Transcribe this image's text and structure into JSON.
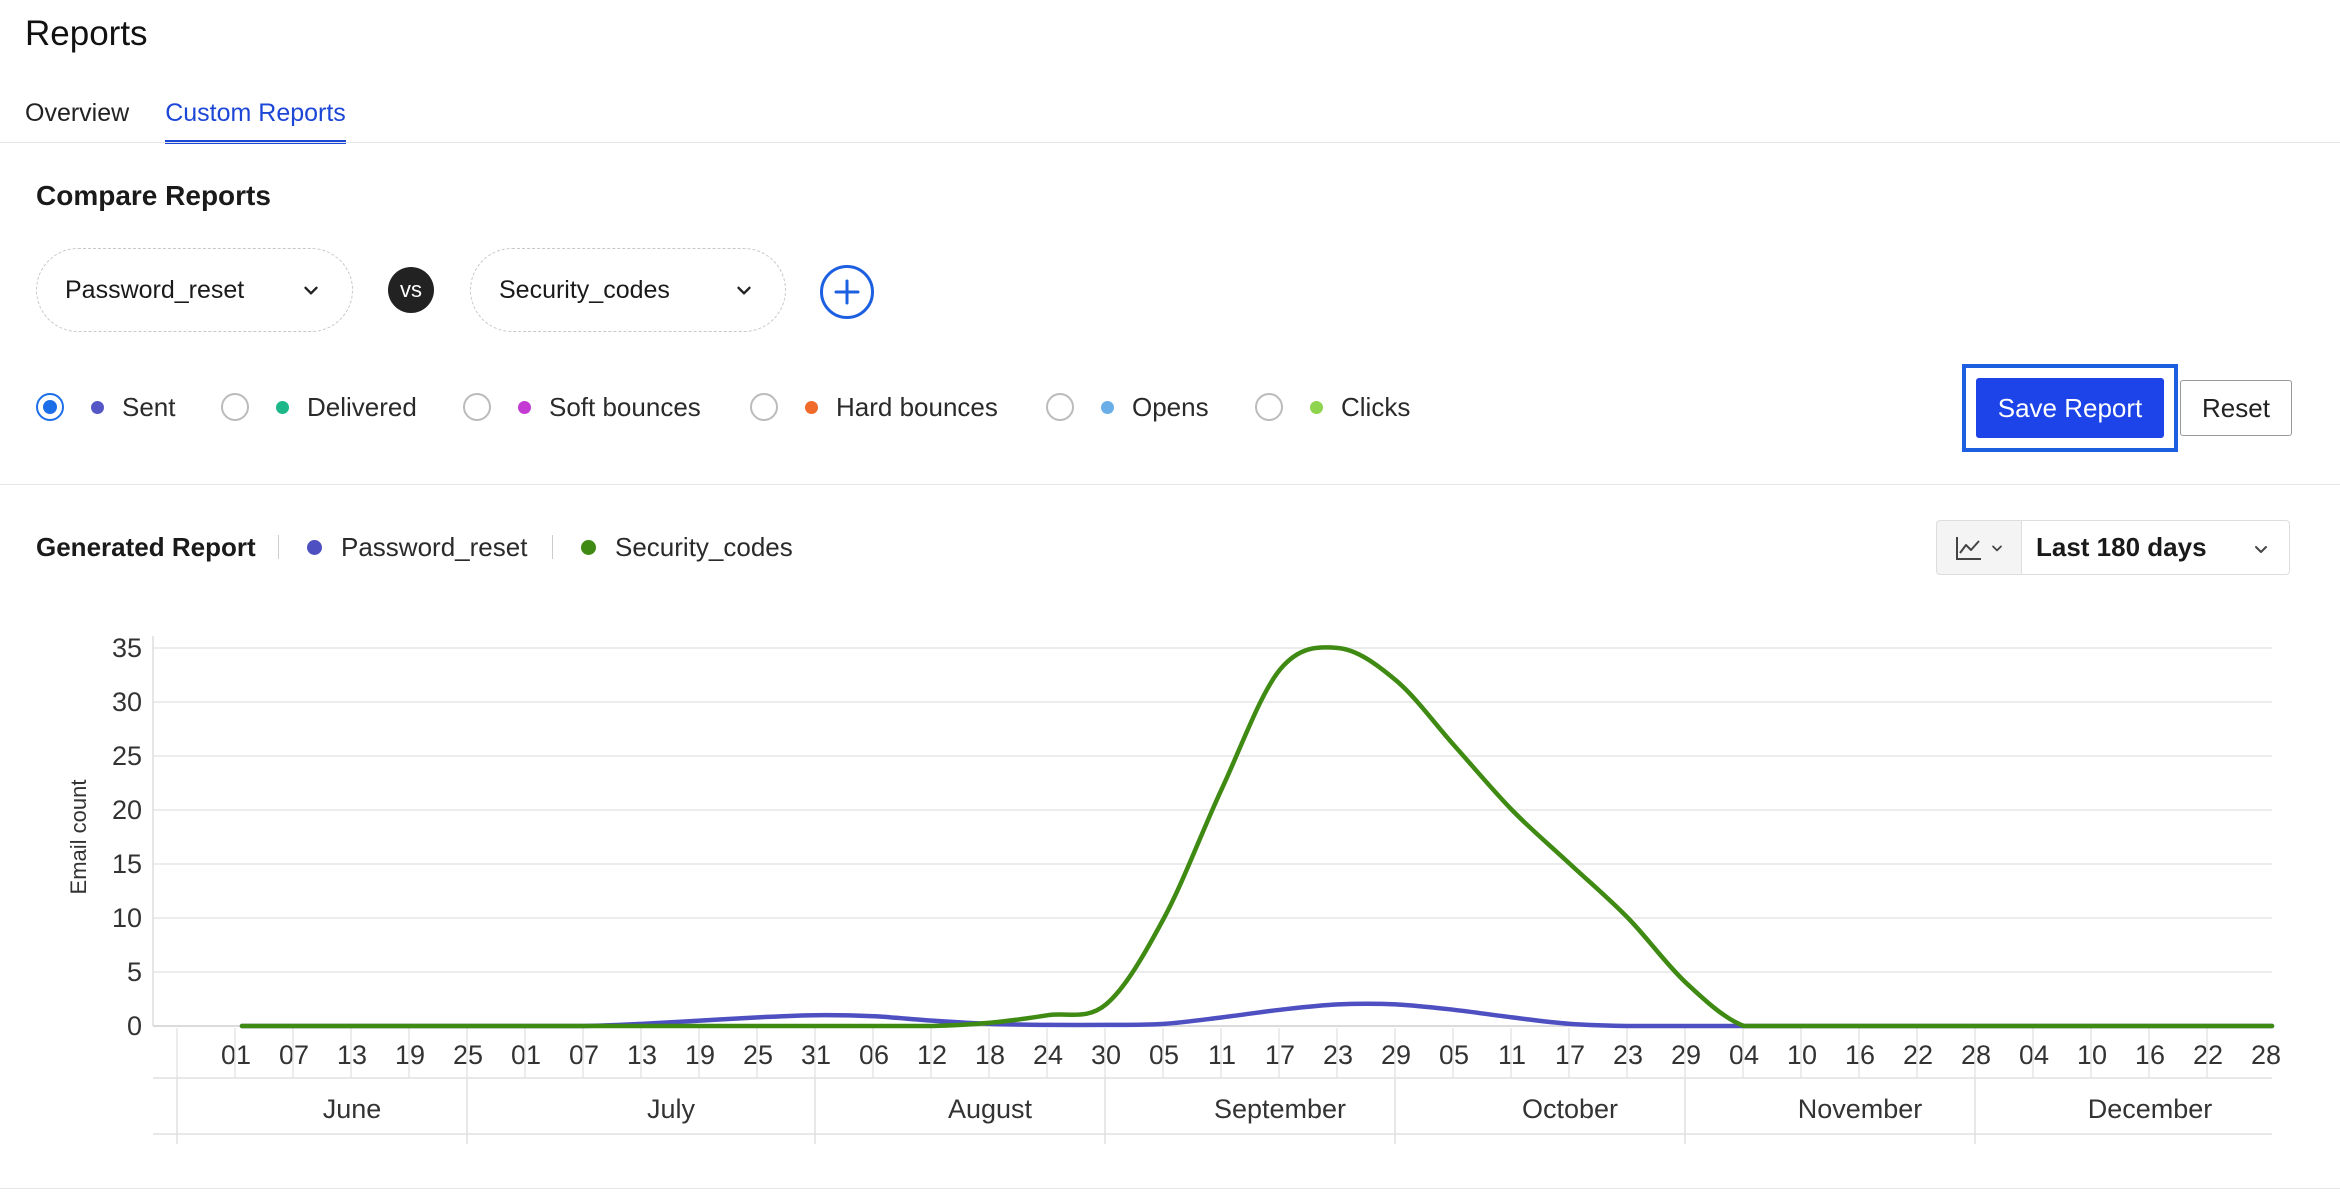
{
  "page": {
    "title": "Reports"
  },
  "tabs": [
    {
      "label": "Overview",
      "active": false
    },
    {
      "label": "Custom Reports",
      "active": true
    }
  ],
  "compare": {
    "title": "Compare Reports",
    "report_a": "Password_reset",
    "vs_label": "vs",
    "report_b": "Security_codes"
  },
  "metrics": [
    {
      "label": "Sent",
      "checked": true,
      "color": "#5557c7"
    },
    {
      "label": "Delivered",
      "checked": false,
      "color": "#1db88a"
    },
    {
      "label": "Soft bounces",
      "checked": false,
      "color": "#c43bd3"
    },
    {
      "label": "Hard bounces",
      "checked": false,
      "color": "#f06a2a"
    },
    {
      "label": "Opens",
      "checked": false,
      "color": "#6aaee8"
    },
    {
      "label": "Clicks",
      "checked": false,
      "color": "#8fd44e"
    }
  ],
  "actions": {
    "save_label": "Save Report",
    "reset_label": "Reset"
  },
  "generated": {
    "title": "Generated Report",
    "legend": [
      {
        "name": "Password_reset",
        "color": "#4e50c2"
      },
      {
        "name": "Security_codes",
        "color": "#3e8a12"
      }
    ],
    "chart_type_icon": "line-chart-icon",
    "range_label": "Last 180 days"
  },
  "chart_data": {
    "type": "line",
    "ylabel": "Email count",
    "xlabel": "",
    "ylim": [
      0,
      35
    ],
    "yticks": [
      0,
      5,
      10,
      15,
      20,
      25,
      30,
      35
    ],
    "grid": true,
    "x": [
      "01",
      "07",
      "13",
      "19",
      "25",
      "01",
      "07",
      "13",
      "19",
      "25",
      "31",
      "06",
      "12",
      "18",
      "24",
      "30",
      "05",
      "11",
      "17",
      "23",
      "29",
      "05",
      "11",
      "17",
      "23",
      "29",
      "04",
      "10",
      "16",
      "22",
      "28",
      "04",
      "10",
      "16",
      "22",
      "28"
    ],
    "months": [
      {
        "label": "June",
        "start": 0,
        "end": 5
      },
      {
        "label": "July",
        "start": 5,
        "end": 11
      },
      {
        "label": "August",
        "start": 11,
        "end": 16
      },
      {
        "label": "September",
        "start": 16,
        "end": 21
      },
      {
        "label": "October",
        "start": 21,
        "end": 26
      },
      {
        "label": "November",
        "start": 26,
        "end": 31
      },
      {
        "label": "December",
        "start": 31,
        "end": 36
      }
    ],
    "series": [
      {
        "name": "Password_reset",
        "color": "#4e50c2",
        "values": [
          0,
          0,
          0,
          0,
          0,
          0,
          0,
          0.2,
          0.5,
          0.8,
          1,
          0.9,
          0.5,
          0.2,
          0.1,
          0.1,
          0.2,
          0.8,
          1.5,
          2,
          2,
          1.5,
          0.8,
          0.2,
          0,
          0,
          0,
          0,
          0,
          0,
          0,
          0,
          0,
          0,
          0,
          0
        ]
      },
      {
        "name": "Security_codes",
        "color": "#3e8a12",
        "values": [
          0,
          0,
          0,
          0,
          0,
          0,
          0,
          0,
          0,
          0,
          0,
          0,
          0,
          0.3,
          1,
          2,
          10,
          22,
          33,
          35,
          32,
          26,
          20,
          15,
          10,
          4,
          0,
          0,
          0,
          0,
          0,
          0,
          0,
          0,
          0,
          0
        ]
      }
    ]
  }
}
